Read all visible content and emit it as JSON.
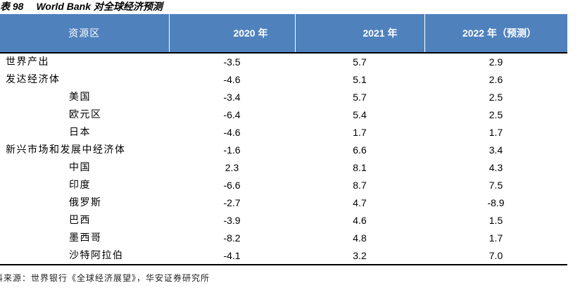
{
  "title": {
    "number": "表 98",
    "text": "World Bank 对全球经济预测"
  },
  "table": {
    "headers": [
      "资源区",
      "2020 年",
      "2021 年",
      "2022 年（预测）"
    ],
    "header_color": "#4f81bd",
    "rows": [
      {
        "name": "世界产出",
        "level": 0,
        "y2020": "-3.5",
        "y2021": "5.7",
        "y2022": "2.9"
      },
      {
        "name": "发达经济体",
        "level": 0,
        "y2020": "-4.6",
        "y2021": "5.1",
        "y2022": "2.6"
      },
      {
        "name": "美国",
        "level": 1,
        "y2020": "-3.4",
        "y2021": "5.7",
        "y2022": "2.5"
      },
      {
        "name": "欧元区",
        "level": 1,
        "y2020": "-6.4",
        "y2021": "5.4",
        "y2022": "2.5"
      },
      {
        "name": "日本",
        "level": 1,
        "y2020": "-4.6",
        "y2021": "1.7",
        "y2022": "1.7"
      },
      {
        "name": "新兴市场和发展中经济体",
        "level": 0,
        "y2020": "-1.6",
        "y2021": "6.6",
        "y2022": "3.4"
      },
      {
        "name": "中国",
        "level": 1,
        "y2020": "2.3",
        "y2021": "8.1",
        "y2022": "4.3"
      },
      {
        "name": "印度",
        "level": 1,
        "y2020": "-6.6",
        "y2021": "8.7",
        "y2022": "7.5"
      },
      {
        "name": "俄罗斯",
        "level": 1,
        "y2020": "-2.7",
        "y2021": "4.7",
        "y2022": "-8.9"
      },
      {
        "name": "巴西",
        "level": 1,
        "y2020": "-3.9",
        "y2021": "4.6",
        "y2022": "1.5"
      },
      {
        "name": "墨西哥",
        "level": 1,
        "y2020": "-8.2",
        "y2021": "4.8",
        "y2022": "1.7"
      },
      {
        "name": "沙特阿拉伯",
        "level": 1,
        "y2020": "-4.1",
        "y2021": "3.2",
        "y2022": "7.0"
      }
    ]
  },
  "source": "料来源：世界银行《全球经济展望》，华安证券研究所"
}
